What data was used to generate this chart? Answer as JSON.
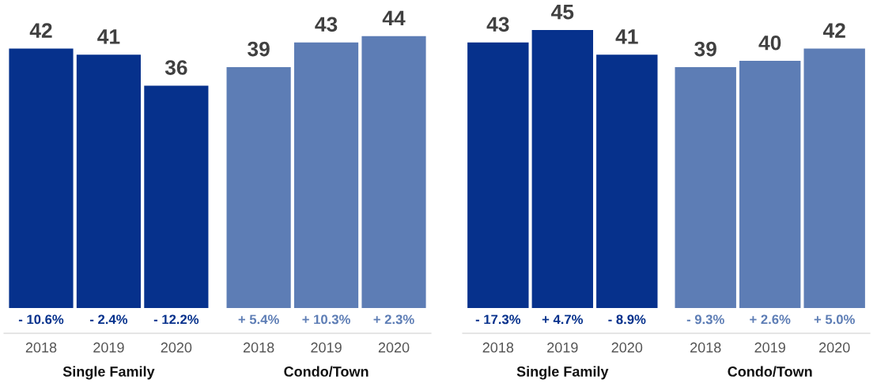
{
  "chart_data": [
    {
      "type": "bar",
      "categories": [
        "2018",
        "2019",
        "2020",
        "2018",
        "2019",
        "2020"
      ],
      "data_labels": true,
      "grid": false,
      "legend": false,
      "series": [
        {
          "color": "#06318c",
          "values": [
            42,
            41,
            36,
            null,
            null,
            null
          ]
        },
        {
          "color": "#5d7db5",
          "values": [
            null,
            null,
            null,
            39,
            43,
            44
          ]
        }
      ],
      "annotations": [
        "- 10.6%",
        "- 2.4%",
        "- 12.2%",
        "+ 5.4%",
        "+ 10.3%",
        "+ 2.3%",
        "Single Family",
        "Condo/Town"
      ]
    },
    {
      "type": "bar",
      "categories": [
        "2018",
        "2019",
        "2020",
        "2018",
        "2019",
        "2020"
      ],
      "data_labels": true,
      "grid": false,
      "legend": false,
      "series": [
        {
          "color": "#06318c",
          "values": [
            43,
            45,
            41,
            null,
            null,
            null
          ]
        },
        {
          "color": "#5d7db5",
          "values": [
            null,
            null,
            null,
            39,
            40,
            42
          ]
        }
      ],
      "annotations": [
        "- 17.3%",
        "+ 4.7%",
        "- 8.9%",
        "- 9.3%",
        "+ 2.6%",
        "+ 5.0%",
        "Single Family",
        "Condo/Town"
      ]
    }
  ]
}
